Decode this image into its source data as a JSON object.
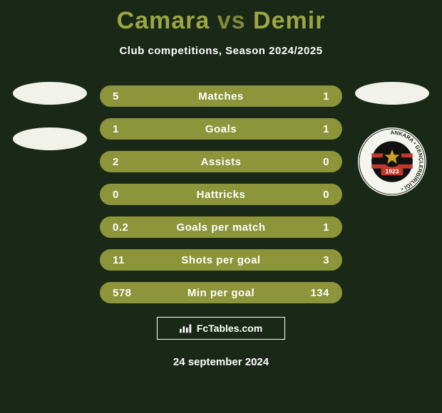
{
  "title": {
    "player1": "Camara",
    "vs": "vs",
    "player2": "Demir",
    "colors": {
      "players": "#9aa642",
      "vs": "#7e8a3a"
    }
  },
  "subtitle": "Club competitions, Season 2024/2025",
  "stats": {
    "bar_color": "#8c953a",
    "text_color": "#ffffff",
    "rows": [
      {
        "left": "5",
        "label": "Matches",
        "right": "1"
      },
      {
        "left": "1",
        "label": "Goals",
        "right": "1"
      },
      {
        "left": "2",
        "label": "Assists",
        "right": "0"
      },
      {
        "left": "0",
        "label": "Hattricks",
        "right": "0"
      },
      {
        "left": "0.2",
        "label": "Goals per match",
        "right": "1"
      },
      {
        "left": "11",
        "label": "Shots per goal",
        "right": "3"
      },
      {
        "left": "578",
        "label": "Min per goal",
        "right": "134"
      }
    ]
  },
  "left_column": {
    "placeholders": [
      "player1-photo-placeholder",
      "player1-club-placeholder"
    ]
  },
  "right_column": {
    "placeholders": [
      "player2-photo-placeholder"
    ],
    "club_badge": {
      "name": "genclerbirligi-badge",
      "ring_text": "Ankara",
      "year": "1923",
      "colors": {
        "ring_bg": "#f5f5f0",
        "ring_text": "#1a2818",
        "stripes": [
          "#c0392b",
          "#111111"
        ],
        "year_band": "#c0392b",
        "year_text": "#ffffff"
      }
    }
  },
  "brand": {
    "label": "FcTables.com",
    "icon": "bars-icon"
  },
  "date": "24 september 2024",
  "background_color": "#1a2818"
}
